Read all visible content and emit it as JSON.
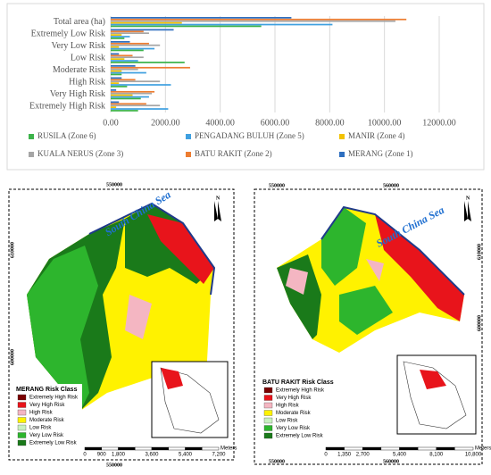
{
  "chart_data": {
    "type": "bar",
    "orientation": "horizontal",
    "categories": [
      "Total area (ha)",
      "Extremely Low Risk",
      "Very Low Risk",
      "Low Risk",
      "Moderate Risk",
      "High Risk",
      "Very High Risk",
      "Extremely High Risk"
    ],
    "series": [
      {
        "name": "RUSILA (Zone 6)",
        "color": "#3cb34a",
        "values": [
          5500,
          500,
          1200,
          2700,
          400,
          600,
          1100,
          1000
        ]
      },
      {
        "name": "PENGADANG BULUH (Zone 5)",
        "color": "#3fa0e0",
        "values": [
          8100,
          700,
          1600,
          1000,
          1300,
          2200,
          1400,
          2100
        ]
      },
      {
        "name": "MANIR (Zone 4)",
        "color": "#f2c200",
        "values": [
          2600,
          400,
          300,
          500,
          400,
          300,
          800,
          200
        ]
      },
      {
        "name": "KUALA NERUS (Zone 3)",
        "color": "#a5a5a5",
        "values": [
          10400,
          1400,
          1800,
          1200,
          1000,
          1800,
          1500,
          1800
        ]
      },
      {
        "name": "BATU RAKIT (Zone 2)",
        "color": "#ed7d31",
        "values": [
          10800,
          1200,
          1400,
          800,
          2900,
          900,
          1600,
          1300
        ]
      },
      {
        "name": "MERANG  (Zone 1)",
        "color": "#2e6fc0",
        "values": [
          6600,
          2300,
          700,
          300,
          900,
          400,
          200,
          300
        ]
      }
    ],
    "xlim": [
      0,
      12000
    ],
    "xticks": [
      {
        "value": 0,
        "label": "0.00"
      },
      {
        "value": 2000,
        "label": "2000.00"
      },
      {
        "value": 4000,
        "label": "4000.00"
      },
      {
        "value": 6000,
        "label": "6000.00"
      },
      {
        "value": 8000,
        "label": "8000.00"
      },
      {
        "value": 10000,
        "label": "10000.00"
      },
      {
        "value": 12000,
        "label": "12000.00"
      }
    ],
    "grid": true,
    "legend": "bottom"
  },
  "maps": [
    {
      "title": "MERANG Risk Class",
      "sea_label": "South China Sea",
      "legend": [
        "Extremely High Risk",
        "Very High Risk",
        "High Risk",
        "Moderate Risk",
        "Low Risk",
        "Very Low Risk",
        "Extremely Low Risk"
      ],
      "x_coords": [
        "550000"
      ],
      "y_coords": [
        "610000",
        "600000"
      ],
      "scale": [
        "0",
        "900",
        "1,800",
        "3,600",
        "5,400",
        "7,200"
      ],
      "scale_unit": "Meters"
    },
    {
      "title": "BATU RAKIT Risk Class",
      "sea_label": "South China Sea",
      "legend": [
        "Extremely High Risk",
        "Very High Risk",
        "High Risk",
        "Moderate Risk",
        "Low Risk",
        "Very Low Risk",
        "Extremely Low Risk"
      ],
      "x_coords": [
        "550000",
        "560000"
      ],
      "y_coords": [
        "610000",
        "600000"
      ],
      "scale": [
        "0",
        "1,350",
        "2,700",
        "5,400",
        "8,100",
        "10,800"
      ],
      "scale_unit": "Meters"
    }
  ]
}
